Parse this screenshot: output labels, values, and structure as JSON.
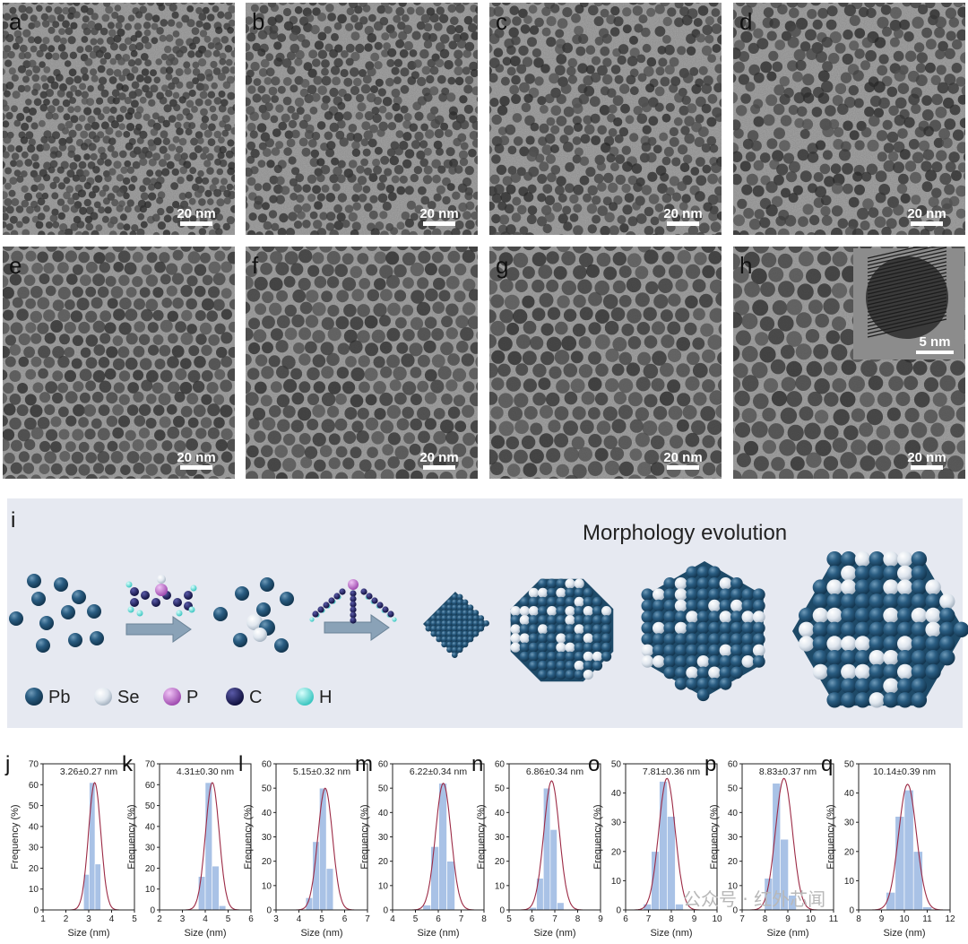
{
  "tem_panels": [
    {
      "label": "a",
      "scale": "20 nm",
      "d": 3.26
    },
    {
      "label": "b",
      "scale": "20 nm",
      "d": 4.31
    },
    {
      "label": "c",
      "scale": "20 nm",
      "d": 5.15
    },
    {
      "label": "d",
      "scale": "20 nm",
      "d": 6.22
    },
    {
      "label": "e",
      "scale": "20 nm",
      "d": 6.86
    },
    {
      "label": "f",
      "scale": "20 nm",
      "d": 7.81
    },
    {
      "label": "g",
      "scale": "20 nm",
      "d": 8.83
    },
    {
      "label": "h",
      "scale": "20 nm",
      "d": 10.14
    }
  ],
  "inset": {
    "scale": "5 nm"
  },
  "schematic": {
    "label": "i",
    "title": "Morphology evolution",
    "legend": [
      {
        "symbol": "Pb",
        "color": "#1f4e6e"
      },
      {
        "symbol": "Se",
        "color": "#dde4ec"
      },
      {
        "symbol": "P",
        "color": "#c46fd0"
      },
      {
        "symbol": "C",
        "color": "#1a1a5e"
      },
      {
        "symbol": "H",
        "color": "#6fe0dc"
      }
    ]
  },
  "watermark": "公众号 · 红外芯闻",
  "chart_data": [
    {
      "type": "bar",
      "label": "j",
      "stat": "3.26±0.27 nm",
      "xlabel": "Size (nm)",
      "ylabel": "Frequency (%)",
      "xlim": [
        1,
        5
      ],
      "ylim": [
        0,
        70
      ],
      "xticks": [
        1,
        2,
        3,
        4,
        5
      ],
      "yticks": [
        0,
        10,
        20,
        30,
        40,
        50,
        60,
        70
      ],
      "bin_width": 0.25,
      "bins": [
        2.9,
        3.15,
        3.4
      ],
      "values": [
        17,
        61,
        22
      ],
      "fit": {
        "mu": 3.26,
        "sigma": 0.27,
        "peak": 61
      }
    },
    {
      "type": "bar",
      "label": "k",
      "stat": "4.31±0.30 nm",
      "xlabel": "Size (nm)",
      "ylabel": "Frequency (%)",
      "xlim": [
        2,
        6
      ],
      "ylim": [
        0,
        70
      ],
      "xticks": [
        2,
        3,
        4,
        5,
        6
      ],
      "yticks": [
        0,
        10,
        20,
        30,
        40,
        50,
        60,
        70
      ],
      "bin_width": 0.3,
      "bins": [
        3.85,
        4.15,
        4.45,
        4.75
      ],
      "values": [
        16,
        61,
        21,
        2
      ],
      "fit": {
        "mu": 4.31,
        "sigma": 0.3,
        "peak": 61
      }
    },
    {
      "type": "bar",
      "label": "l",
      "stat": "5.15±0.32 nm",
      "xlabel": "Size (nm)",
      "ylabel": "Frequency (%)",
      "xlim": [
        3,
        7
      ],
      "ylim": [
        0,
        60
      ],
      "xticks": [
        3,
        4,
        5,
        6,
        7
      ],
      "yticks": [
        0,
        10,
        20,
        30,
        40,
        50,
        60
      ],
      "bin_width": 0.3,
      "bins": [
        4.45,
        4.75,
        5.05,
        5.35
      ],
      "values": [
        5,
        28,
        50,
        17
      ],
      "fit": {
        "mu": 5.15,
        "sigma": 0.32,
        "peak": 50
      }
    },
    {
      "type": "bar",
      "label": "m",
      "stat": "6.22±0.34 nm",
      "xlabel": "Size (nm)",
      "ylabel": "Frequency (%)",
      "xlim": [
        4,
        8
      ],
      "ylim": [
        0,
        60
      ],
      "xticks": [
        4,
        5,
        6,
        7,
        8
      ],
      "yticks": [
        0,
        10,
        20,
        30,
        40,
        50,
        60
      ],
      "bin_width": 0.35,
      "bins": [
        5.5,
        5.85,
        6.2,
        6.55
      ],
      "values": [
        2,
        26,
        52,
        20
      ],
      "fit": {
        "mu": 6.22,
        "sigma": 0.34,
        "peak": 52
      }
    },
    {
      "type": "bar",
      "label": "n",
      "stat": "6.86±0.34 nm",
      "xlabel": "Size (nm)",
      "ylabel": "Frequency (%)",
      "xlim": [
        5,
        9
      ],
      "ylim": [
        0,
        60
      ],
      "xticks": [
        5,
        6,
        7,
        8,
        9
      ],
      "yticks": [
        0,
        10,
        20,
        30,
        40,
        50,
        60
      ],
      "bin_width": 0.3,
      "bins": [
        6.05,
        6.35,
        6.65,
        6.95,
        7.25,
        7.55
      ],
      "values": [
        1,
        13,
        50,
        33,
        3,
        0
      ],
      "fit": {
        "mu": 6.86,
        "sigma": 0.34,
        "peak": 53
      }
    },
    {
      "type": "bar",
      "label": "o",
      "stat": "7.81±0.36 nm",
      "xlabel": "Size (nm)",
      "ylabel": "Frequency (%)",
      "xlim": [
        6,
        10
      ],
      "ylim": [
        0,
        50
      ],
      "xticks": [
        6,
        7,
        8,
        9,
        10
      ],
      "yticks": [
        0,
        10,
        20,
        30,
        40,
        50
      ],
      "bin_width": 0.35,
      "bins": [
        6.95,
        7.3,
        7.65,
        8.0,
        8.35
      ],
      "values": [
        2,
        20,
        44,
        32,
        2
      ],
      "fit": {
        "mu": 7.81,
        "sigma": 0.36,
        "peak": 45
      }
    },
    {
      "type": "bar",
      "label": "p",
      "stat": "8.83±0.37 nm",
      "xlabel": "Size (nm)",
      "ylabel": "Frequency (%)",
      "xlim": [
        7,
        11
      ],
      "ylim": [
        0,
        60
      ],
      "xticks": [
        7,
        8,
        9,
        10,
        11
      ],
      "yticks": [
        0,
        10,
        20,
        30,
        40,
        50,
        60
      ],
      "bin_width": 0.35,
      "bins": [
        8.15,
        8.5,
        8.85,
        9.2
      ],
      "values": [
        13,
        52,
        29,
        6
      ],
      "fit": {
        "mu": 8.83,
        "sigma": 0.37,
        "peak": 54
      }
    },
    {
      "type": "bar",
      "label": "q",
      "stat": "10.14±0.39 nm",
      "xlabel": "Size (nm)",
      "ylabel": "Frequency (%)",
      "xlim": [
        8,
        12
      ],
      "ylim": [
        0,
        50
      ],
      "xticks": [
        8,
        9,
        10,
        11,
        12
      ],
      "yticks": [
        0,
        10,
        20,
        30,
        40,
        50
      ],
      "bin_width": 0.4,
      "bins": [
        9.4,
        9.8,
        10.2,
        10.6,
        11.0
      ],
      "values": [
        6,
        32,
        41,
        20,
        1
      ],
      "fit": {
        "mu": 10.14,
        "sigma": 0.39,
        "peak": 43
      }
    }
  ]
}
